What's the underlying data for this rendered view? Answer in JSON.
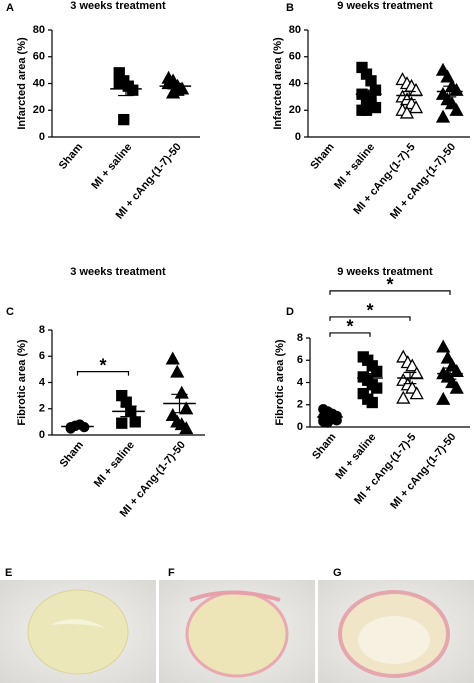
{
  "chart_data": [
    {
      "type": "dot",
      "label": "A",
      "title": "3 weeks treatment",
      "y_label": "Infarcted area (%)",
      "categories": [
        "Sham",
        "MI + saline",
        "MI + cAng-(1-7)-50"
      ],
      "markers": [
        "circle",
        "square",
        "triangle"
      ],
      "filled": [
        true,
        true,
        true
      ],
      "color": "#000000",
      "points": [
        [],
        [
          48,
          42,
          38,
          35,
          40,
          13
        ],
        [
          44,
          42,
          38,
          36,
          40,
          33,
          35
        ]
      ],
      "means": [
        null,
        36,
        38
      ],
      "errors": [
        null,
        5,
        2
      ],
      "ylim": [
        0,
        80
      ],
      "yticks": [
        0,
        20,
        40,
        60,
        80
      ],
      "brackets": []
    },
    {
      "type": "dot",
      "label": "B",
      "title": "9 weeks treatment",
      "y_label": "Infarcted area (%)",
      "categories": [
        "Sham",
        "MI + saline",
        "MI + cAng-(1-7)-5",
        "MI + cAng-(1-7)-50"
      ],
      "markers": [
        "circle",
        "square",
        "triangle",
        "triangle"
      ],
      "filled": [
        true,
        true,
        false,
        true
      ],
      "color": "#000000",
      "points": [
        [],
        [
          52,
          47,
          42,
          35,
          32,
          28,
          25,
          22,
          20,
          20,
          30
        ],
        [
          43,
          40,
          38,
          35,
          30,
          28,
          25,
          22,
          20,
          18
        ],
        [
          50,
          45,
          38,
          35,
          32,
          28,
          25,
          20,
          15
        ]
      ],
      "means": [
        null,
        32,
        31,
        34
      ],
      "errors": [
        null,
        3,
        3,
        4
      ],
      "ylim": [
        0,
        80
      ],
      "yticks": [
        0,
        20,
        40,
        60,
        80
      ],
      "brackets": []
    },
    {
      "type": "dot",
      "label": "C",
      "title": "3 weeks treatment",
      "y_label": "Fibrotic area (%)",
      "categories": [
        "Sham",
        "MI + saline",
        "MI + cAng-(1-7)-50"
      ],
      "markers": [
        "circle",
        "square",
        "triangle"
      ],
      "filled": [
        true,
        true,
        true
      ],
      "color": "#000000",
      "points": [
        [
          0.6,
          0.7,
          0.8,
          0.6,
          0.5,
          0.7
        ],
        [
          3.0,
          2.5,
          1.8,
          1.0,
          0.9
        ],
        [
          5.8,
          4.8,
          3.2,
          2.0,
          1.5,
          1.0,
          0.8,
          0.5
        ]
      ],
      "means": [
        0.65,
        1.8,
        2.4
      ],
      "errors": [
        0.05,
        0.4,
        0.7
      ],
      "ylim": [
        0,
        8
      ],
      "yticks": [
        0,
        2,
        4,
        6,
        8
      ],
      "brackets": [
        {
          "from": 0,
          "to": 1,
          "label": "*"
        }
      ]
    },
    {
      "type": "dot",
      "label": "D",
      "title": "9 weeks treatment",
      "y_label": "Fibrotic area (%)",
      "categories": [
        "Sham",
        "MI + saline",
        "MI + cAng-(1-7)-5",
        "MI + cAng-(1-7)-50"
      ],
      "markers": [
        "circle",
        "square",
        "triangle",
        "triangle"
      ],
      "filled": [
        true,
        true,
        false,
        true
      ],
      "color": "#000000",
      "points": [
        [
          1.6,
          1.4,
          1.2,
          1.0,
          0.9,
          0.8,
          0.7,
          0.6,
          0.5,
          0.4
        ],
        [
          6.3,
          6.0,
          5.5,
          5.0,
          4.5,
          4.2,
          3.8,
          3.5,
          3.0,
          2.5,
          2.2
        ],
        [
          6.3,
          5.8,
          5.5,
          4.8,
          4.2,
          3.8,
          3.5,
          3.0,
          2.6
        ],
        [
          7.2,
          6.2,
          5.5,
          5.0,
          4.8,
          4.5,
          4.0,
          3.5,
          2.5
        ]
      ],
      "means": [
        0.9,
        4.4,
        4.4,
        4.8
      ],
      "errors": [
        0.1,
        0.4,
        0.5,
        0.5
      ],
      "ylim": [
        0,
        8
      ],
      "yticks": [
        0,
        2,
        4,
        6,
        8
      ],
      "brackets": [
        {
          "from": 0,
          "to": 1,
          "label": "*"
        },
        {
          "from": 0,
          "to": 2,
          "label": "*"
        },
        {
          "from": 0,
          "to": 3,
          "label": "*"
        }
      ]
    }
  ],
  "images": [
    {
      "label": "E"
    },
    {
      "label": "F"
    },
    {
      "label": "G"
    }
  ]
}
